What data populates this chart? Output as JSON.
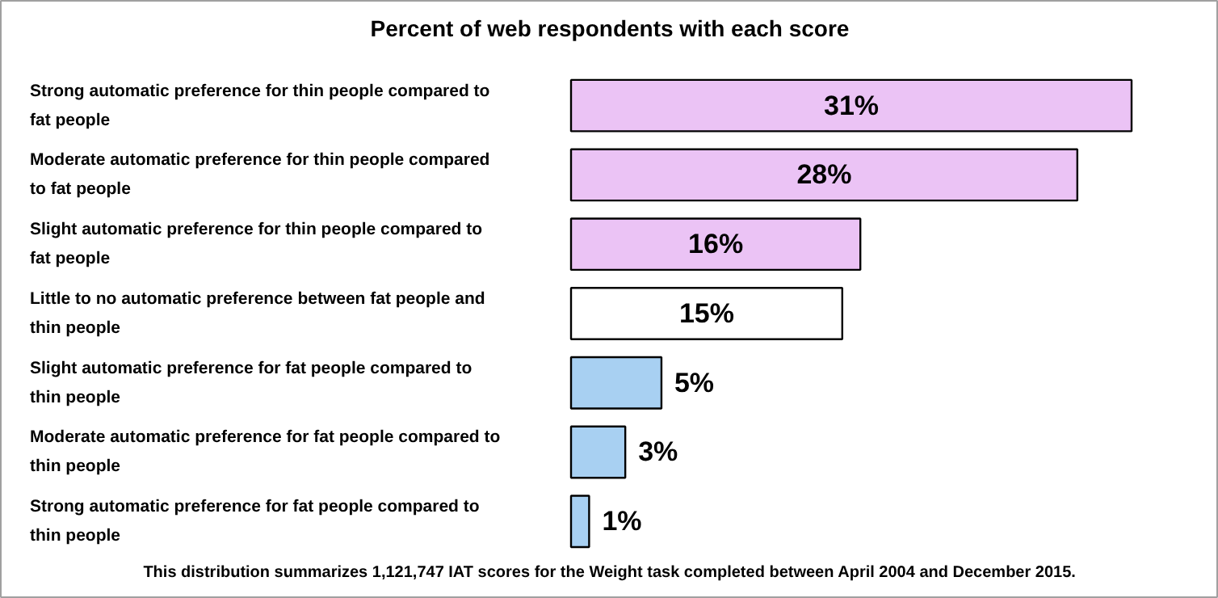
{
  "chart_data": {
    "type": "bar",
    "orientation": "horizontal",
    "title": "Percent of web respondents with each score",
    "categories": [
      "Strong automatic preference for thin people compared to fat people",
      "Moderate automatic preference for thin people compared to fat people",
      "Slight automatic preference for thin people compared to fat people",
      "Little to no automatic preference between fat people and thin people",
      "Slight automatic preference for fat people compared to thin people",
      "Moderate automatic preference for fat people compared to thin people",
      "Strong automatic preference for fat people compared to thin people"
    ],
    "values": [
      31,
      28,
      16,
      15,
      5,
      3,
      1
    ],
    "value_labels": [
      "31%",
      "28%",
      "16%",
      "15%",
      "5%",
      "3%",
      "1%"
    ],
    "colors": [
      "#ebc3f5",
      "#ebc3f5",
      "#ebc3f5",
      "#ffffff",
      "#a8d0f2",
      "#a8d0f2",
      "#a8d0f2"
    ],
    "annotations": [
      "This distribution summarizes 1,121,747 IAT scores for the Weight task completed between April 2004 and December 2015."
    ]
  }
}
